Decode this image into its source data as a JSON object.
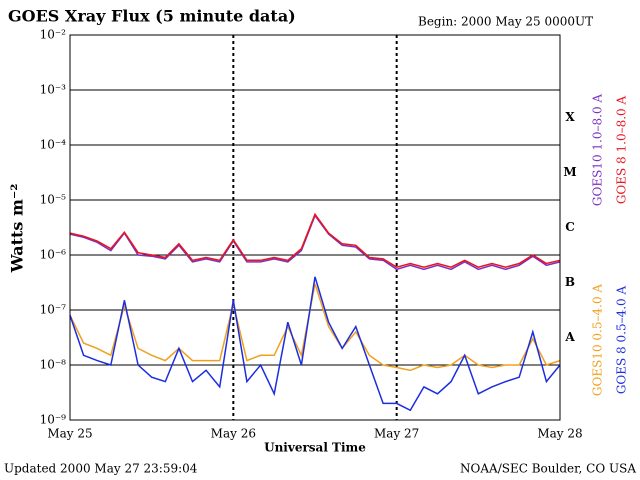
{
  "chart_data": {
    "type": "line",
    "title": "GOES Xray Flux (5 minute data)",
    "subtitle": "Begin:  2000 May 25 0000UT",
    "ylabel": "Watts m⁻²",
    "xlabel": "Universal Time",
    "footer_left": "Updated 2000 May 27 23:59:04",
    "footer_right": "NOAA/SEC Boulder, CO USA",
    "class_labels": [
      "X",
      "M",
      "C",
      "B",
      "A"
    ],
    "ylog": true,
    "ylim": [
      1e-09,
      0.01
    ],
    "yticks": [
      {
        "value": 0.01,
        "label": "10⁻²"
      },
      {
        "value": 0.001,
        "label": "10⁻³"
      },
      {
        "value": 0.0001,
        "label": "10⁻⁴"
      },
      {
        "value": 1e-05,
        "label": "10⁻⁵"
      },
      {
        "value": 1e-06,
        "label": "10⁻⁶"
      },
      {
        "value": 1e-07,
        "label": "10⁻⁷"
      },
      {
        "value": 1e-08,
        "label": "10⁻⁸"
      },
      {
        "value": 1e-09,
        "label": "10⁻⁹"
      }
    ],
    "xlim": [
      0,
      72
    ],
    "xticks": [
      {
        "value": 0,
        "label": "May 25"
      },
      {
        "value": 24,
        "label": "May 26"
      },
      {
        "value": 48,
        "label": "May 27"
      },
      {
        "value": 72,
        "label": "May 28"
      }
    ],
    "x": [
      0,
      2,
      4,
      6,
      8,
      10,
      12,
      14,
      16,
      18,
      20,
      22,
      24,
      26,
      28,
      30,
      32,
      34,
      36,
      38,
      40,
      42,
      44,
      46,
      48,
      50,
      52,
      54,
      56,
      58,
      60,
      62,
      64,
      66,
      68,
      70,
      72
    ],
    "series": [
      {
        "name": "GOES10 1.0–8.0 A",
        "color": "#7b2fbf",
        "values": [
          2.4e-06,
          2.1e-06,
          1.7e-06,
          1.2e-06,
          2.5e-06,
          1e-06,
          9.5e-07,
          8.5e-07,
          1.5e-06,
          7.5e-07,
          8.5e-07,
          7.5e-07,
          1.8e-06,
          7.5e-07,
          7.5e-07,
          8.5e-07,
          7.5e-07,
          1.2e-06,
          5.2e-06,
          2.4e-06,
          1.5e-06,
          1.4e-06,
          8.5e-07,
          8e-07,
          5.5e-07,
          6.5e-07,
          5.5e-07,
          6.5e-07,
          5.5e-07,
          7.5e-07,
          5.5e-07,
          6.5e-07,
          5.5e-07,
          6.5e-07,
          9.5e-07,
          6.5e-07,
          7.5e-07
        ]
      },
      {
        "name": "GOES 8 1.0–8.0 A",
        "color": "#e8141e",
        "values": [
          2.5e-06,
          2.2e-06,
          1.8e-06,
          1.3e-06,
          2.6e-06,
          1.1e-06,
          1e-06,
          9e-07,
          1.6e-06,
          8e-07,
          9e-07,
          8e-07,
          1.9e-06,
          8e-07,
          8e-07,
          9e-07,
          8e-07,
          1.3e-06,
          5.5e-06,
          2.5e-06,
          1.6e-06,
          1.5e-06,
          9e-07,
          8.5e-07,
          6e-07,
          7e-07,
          6e-07,
          7e-07,
          6e-07,
          8e-07,
          6e-07,
          7e-07,
          6e-07,
          7e-07,
          1e-06,
          7e-07,
          8e-07
        ]
      },
      {
        "name": "GOES10 0.5–4.0 A",
        "color": "#f0a020",
        "values": [
          8e-08,
          2.5e-08,
          2e-08,
          1.5e-08,
          1.2e-07,
          2e-08,
          1.5e-08,
          1.2e-08,
          2e-08,
          1.2e-08,
          1.2e-08,
          1.2e-08,
          1.3e-07,
          1.2e-08,
          1.5e-08,
          1.5e-08,
          5e-08,
          1.5e-08,
          3e-07,
          5e-08,
          2e-08,
          4e-08,
          1.5e-08,
          1e-08,
          9e-09,
          8e-09,
          1e-08,
          9e-09,
          1e-08,
          1.5e-08,
          1e-08,
          9e-09,
          1e-08,
          1e-08,
          3e-08,
          1e-08,
          1.2e-08
        ]
      },
      {
        "name": "GOES 8 0.5–4.0 A",
        "color": "#1c2ee0",
        "values": [
          8e-08,
          1.5e-08,
          1.2e-08,
          1e-08,
          1.5e-07,
          1e-08,
          6e-09,
          5e-09,
          2e-08,
          5e-09,
          8e-09,
          4e-09,
          1.5e-07,
          5e-09,
          1e-08,
          3e-09,
          6e-08,
          1e-08,
          4e-07,
          6e-08,
          2e-08,
          5e-08,
          1e-08,
          2e-09,
          2e-09,
          1.5e-09,
          4e-09,
          3e-09,
          5e-09,
          1.5e-08,
          3e-09,
          4e-09,
          5e-09,
          6e-09,
          4e-08,
          5e-09,
          1e-08
        ]
      }
    ]
  }
}
